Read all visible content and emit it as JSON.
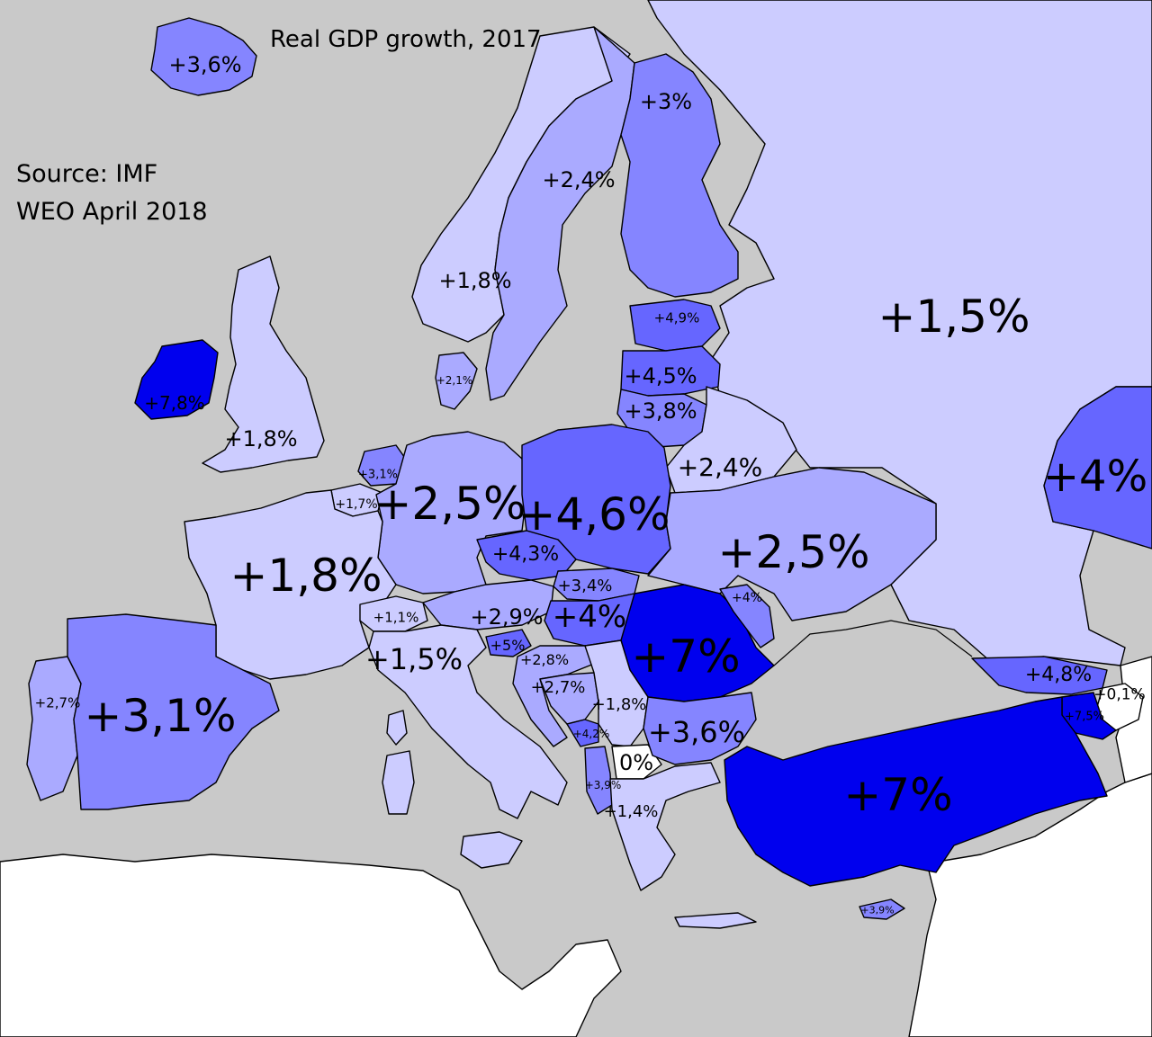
{
  "title": "Real GDP growth, 2017",
  "source_lines": [
    "Source: IMF",
    "WEO April 2018"
  ],
  "colors": {
    "sea": "#c9c9c9",
    "non_europe": "#ffffff",
    "level_0": "#ffffff",
    "level_1": "#ccccff",
    "level_2": "#aaaaff",
    "level_3": "#8585ff",
    "level_4": "#6666ff",
    "level_5": "#0000ee"
  },
  "countries": [
    {
      "name": "Iceland",
      "value": "+3,6%",
      "growth": 3.6,
      "level": 3
    },
    {
      "name": "Ireland",
      "value": "+7,8%",
      "growth": 7.8,
      "level": 5
    },
    {
      "name": "United Kingdom",
      "value": "+1,8%",
      "growth": 1.8,
      "level": 1
    },
    {
      "name": "Norway",
      "value": "+1,8%",
      "growth": 1.8,
      "level": 1
    },
    {
      "name": "Sweden",
      "value": "+2,4%",
      "growth": 2.4,
      "level": 2
    },
    {
      "name": "Finland",
      "value": "+3%",
      "growth": 3.0,
      "level": 3
    },
    {
      "name": "Russia",
      "value": "+1,5%",
      "growth": 1.5,
      "level": 1
    },
    {
      "name": "Kazakhstan",
      "value": "+4%",
      "growth": 4.0,
      "level": 4
    },
    {
      "name": "Estonia",
      "value": "+4,9%",
      "growth": 4.9,
      "level": 4
    },
    {
      "name": "Latvia",
      "value": "+4,5%",
      "growth": 4.5,
      "level": 4
    },
    {
      "name": "Lithuania",
      "value": "+3,8%",
      "growth": 3.8,
      "level": 3
    },
    {
      "name": "Denmark",
      "value": "+2,1%",
      "growth": 2.1,
      "level": 2
    },
    {
      "name": "Belarus",
      "value": "+2,4%",
      "growth": 2.4,
      "level": 2
    },
    {
      "name": "Netherlands",
      "value": "+3,1%",
      "growth": 3.1,
      "level": 3
    },
    {
      "name": "Belgium",
      "value": "+1,7%",
      "growth": 1.7,
      "level": 1
    },
    {
      "name": "Germany",
      "value": "+2,5%",
      "growth": 2.5,
      "level": 2
    },
    {
      "name": "Poland",
      "value": "+4,6%",
      "growth": 4.6,
      "level": 4
    },
    {
      "name": "Ukraine",
      "value": "+2,5%",
      "growth": 2.5,
      "level": 2
    },
    {
      "name": "France",
      "value": "+1,8%",
      "growth": 1.8,
      "level": 1
    },
    {
      "name": "Czech Republic",
      "value": "+4,3%",
      "growth": 4.3,
      "level": 4
    },
    {
      "name": "Slovakia",
      "value": "+3,4%",
      "growth": 3.4,
      "level": 3
    },
    {
      "name": "Moldova",
      "value": "+4%",
      "growth": 4.0,
      "level": 4
    },
    {
      "name": "Switzerland",
      "value": "+1,1%",
      "growth": 1.1,
      "level": 1
    },
    {
      "name": "Austria",
      "value": "+2,9%",
      "growth": 2.9,
      "level": 2
    },
    {
      "name": "Hungary",
      "value": "+4%",
      "growth": 4.0,
      "level": 4
    },
    {
      "name": "Romania",
      "value": "+7%",
      "growth": 7.0,
      "level": 5
    },
    {
      "name": "Italy",
      "value": "+1,5%",
      "growth": 1.5,
      "level": 1
    },
    {
      "name": "Slovenia",
      "value": "+5%",
      "growth": 5.0,
      "level": 4
    },
    {
      "name": "Croatia",
      "value": "+2,8%",
      "growth": 2.8,
      "level": 2
    },
    {
      "name": "Bosnia and Herzegovina",
      "value": "+2,7%",
      "growth": 2.7,
      "level": 2
    },
    {
      "name": "Serbia",
      "value": "+1,8%",
      "growth": 1.8,
      "level": 1
    },
    {
      "name": "Bulgaria",
      "value": "+3,6%",
      "growth": 3.6,
      "level": 3
    },
    {
      "name": "Montenegro",
      "value": "+4,2%",
      "growth": 4.2,
      "level": 4
    },
    {
      "name": "Macedonia",
      "value": "0%",
      "growth": 0.0,
      "level": 0
    },
    {
      "name": "Albania",
      "value": "+3,9%",
      "growth": 3.9,
      "level": 3
    },
    {
      "name": "Greece",
      "value": "+1,4%",
      "growth": 1.4,
      "level": 1
    },
    {
      "name": "Portugal",
      "value": "+2,7%",
      "growth": 2.7,
      "level": 2
    },
    {
      "name": "Spain",
      "value": "+3,1%",
      "growth": 3.1,
      "level": 3
    },
    {
      "name": "Georgia",
      "value": "+4,8%",
      "growth": 4.8,
      "level": 4
    },
    {
      "name": "Azerbaijan",
      "value": "+0,1%",
      "growth": 0.1,
      "level": 0
    },
    {
      "name": "Armenia",
      "value": "+7,5%",
      "growth": 7.5,
      "level": 5
    },
    {
      "name": "Turkey",
      "value": "+7%",
      "growth": 7.0,
      "level": 5
    },
    {
      "name": "Cyprus",
      "value": "+3,9%",
      "growth": 3.9,
      "level": 3
    }
  ]
}
